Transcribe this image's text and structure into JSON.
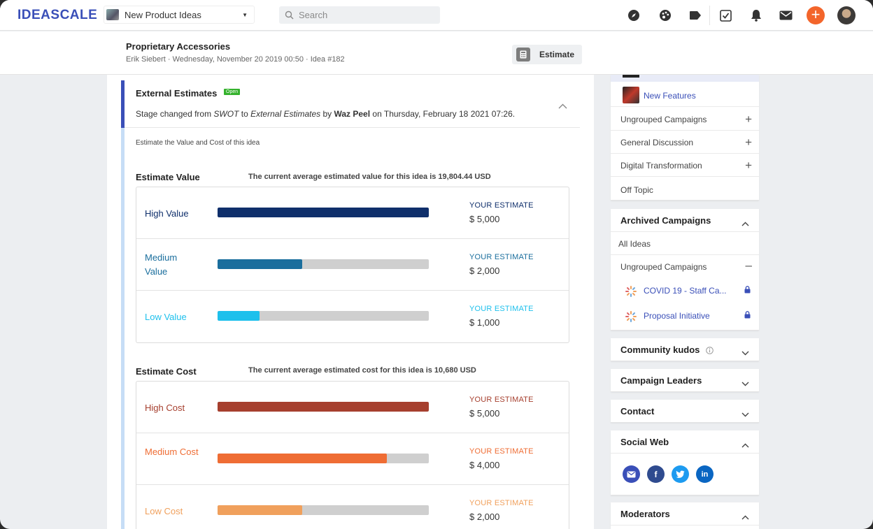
{
  "nav": {
    "logo": "IDEASCALE",
    "community": "New Product Ideas",
    "search_placeholder": "Search",
    "icons": [
      "compass-icon",
      "palette-icon",
      "tag-icon",
      "checkbox-icon",
      "bell-icon",
      "mail-icon",
      "add-icon",
      "avatar"
    ]
  },
  "idea": {
    "title": "Proprietary Accessories",
    "meta": "Erik Siebert · Wednesday, November 20 2019 00:50 · Idea #182",
    "estimate_button": "Estimate"
  },
  "stage": {
    "title": "External Estimates",
    "badge": "Open",
    "desc_prefix": "Stage changed from ",
    "from": "SWOT",
    "to_word": " to ",
    "to": "External Estimates",
    "by_word": " by ",
    "by": "Waz Peel",
    "on_text": " on Thursday, February 18 2021 07:26.",
    "note": "Estimate the Value and Cost of this idea"
  },
  "value": {
    "label": "Estimate Value",
    "avg": "The current average estimated value for this idea is 19,804.44 USD",
    "rows": [
      {
        "label": "High Value",
        "your": "YOUR ESTIMATE",
        "amount": "$ 5,000",
        "fill": 1.0,
        "color": "#0f2f6b",
        "text_color": "#0f2f6b"
      },
      {
        "label": "Medium Value",
        "your": "YOUR ESTIMATE",
        "amount": "$ 2,000",
        "fill": 0.4,
        "color": "#1a6e9d",
        "text_color": "#1a6e9d"
      },
      {
        "label": "Low Value",
        "your": "YOUR ESTIMATE",
        "amount": "$ 1,000",
        "fill": 0.2,
        "color": "#1ec0ec",
        "text_color": "#1ec0ec"
      }
    ]
  },
  "cost": {
    "label": "Estimate Cost",
    "avg": "The current average estimated cost for this idea is 10,680 USD",
    "rows": [
      {
        "label": "High Cost",
        "your": "YOUR ESTIMATE",
        "amount": "$ 5,000",
        "fill": 1.0,
        "color": "#a63f2e",
        "text_color": "#a63f2e"
      },
      {
        "label": "Medium Cost",
        "your": "YOUR ESTIMATE",
        "amount": "$ 4,000",
        "fill": 0.8,
        "color": "#ef6d34",
        "text_color": "#ef6d34"
      },
      {
        "label": "Low Cost",
        "your": "YOUR ESTIMATE",
        "amount": "$ 2,000",
        "fill": 0.4,
        "color": "#f0a05c",
        "text_color": "#f0a05c"
      }
    ]
  },
  "sidebar": {
    "new_features": "New Features",
    "groups": [
      "Ungrouped Campaigns",
      "General Discussion",
      "Digital Transformation",
      "Off Topic"
    ],
    "archived": {
      "title": "Archived Campaigns",
      "all_ideas": "All Ideas",
      "ungrouped": "Ungrouped Campaigns",
      "campaigns": [
        "COVID 19 - Staff Ca...",
        "Proposal Initiative"
      ]
    },
    "kudos": "Community kudos",
    "leaders": "Campaign Leaders",
    "contact": "Contact",
    "social": "Social Web",
    "moderators": "Moderators"
  }
}
